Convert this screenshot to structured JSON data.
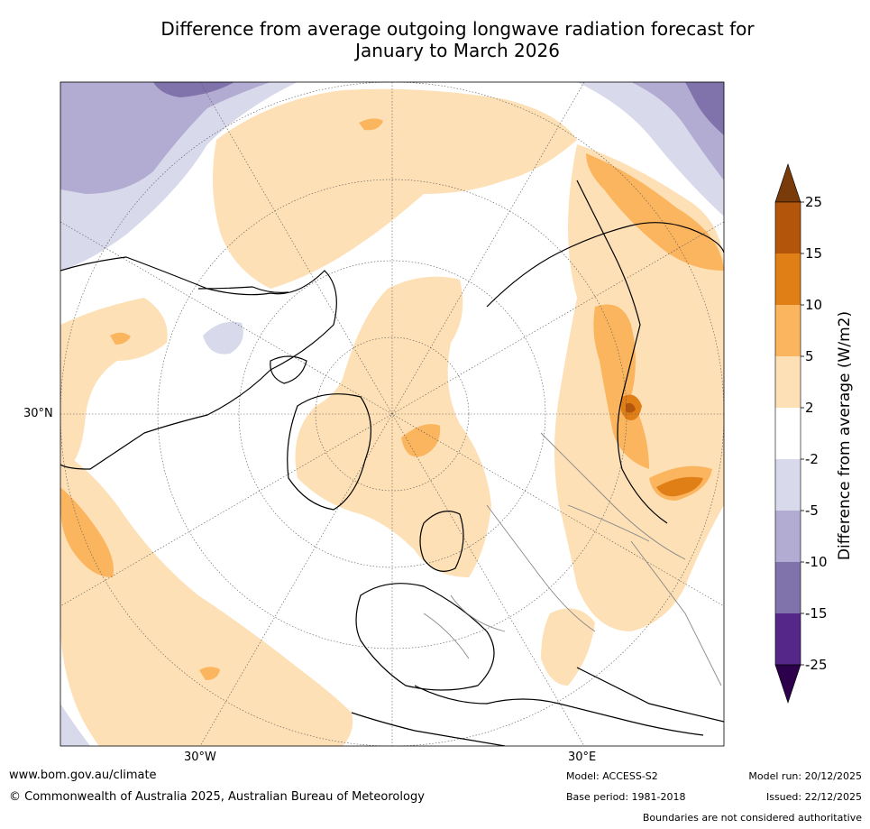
{
  "title": {
    "line1": "Difference from average outgoing longwave radiation forecast for",
    "line2": "January to March 2026"
  },
  "map": {
    "labels": {
      "lat_30n": "30°N",
      "lon_30w": "30°W",
      "lon_30e": "30°E"
    }
  },
  "colorbar": {
    "title": "Difference from average (W/m2)",
    "ticks": [
      "25",
      "15",
      "10",
      "5",
      "2",
      "-2",
      "-5",
      "-10",
      "-15",
      "-25"
    ],
    "colors": {
      "above_25": "#7a3b0a",
      "15_25": "#b4550c",
      "10_15": "#e17f17",
      "5_10": "#fcb55f",
      "2_5": "#fde0b5",
      "neutral": "#ffffff",
      "m5_m2": "#d9d9ec",
      "m10_m5": "#b2abd2",
      "m15_m10": "#8073ac",
      "m25_m15": "#542788",
      "below_m25": "#2d004b"
    }
  },
  "footer": {
    "website": "www.bom.gov.au/climate",
    "copyright": "© Commonwealth of Australia 2025, Australian Bureau of Meteorology",
    "model": "Model: ACCESS-S2",
    "base_period": "Base period: 1981-2018",
    "model_run": "Model run: 20/12/2025",
    "issued": "Issued: 22/12/2025",
    "disclaimer": "Boundaries are not considered authoritative"
  }
}
